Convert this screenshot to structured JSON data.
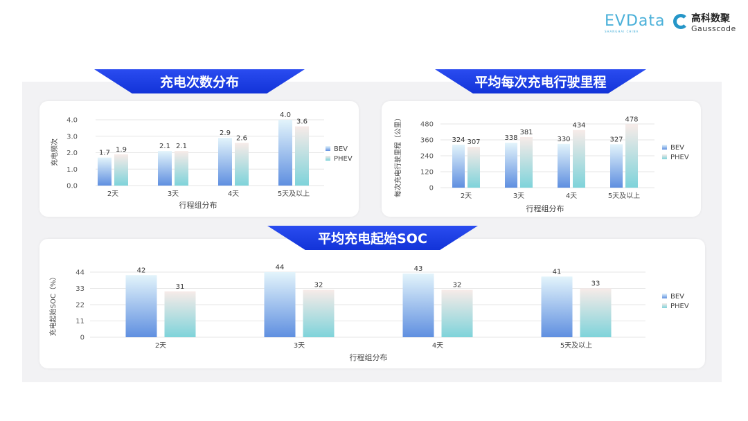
{
  "logos": {
    "evdata": "EVData",
    "evdata_sub": "SHANGHAI CHINA",
    "gauss_cn": "高科数聚",
    "gauss_en": "Gausscode"
  },
  "colors": {
    "bev_top": "#e3f4fb",
    "bev_bottom": "#5f8fe0",
    "phev_top": "#f7ebe8",
    "phev_bottom": "#7ed3da",
    "banner": "#1a3be4"
  },
  "chart_data": [
    {
      "type": "bar",
      "title": "充电次数分布",
      "xlabel": "行程组分布",
      "ylabel": "充电频次",
      "categories": [
        "2天",
        "3天",
        "4天",
        "5天及以上"
      ],
      "ylim": [
        0,
        4
      ],
      "yticks": [
        "0.0",
        "1.0",
        "2.0",
        "3.0",
        "4.0"
      ],
      "series": [
        {
          "name": "BEV",
          "values": [
            1.7,
            2.1,
            2.9,
            4.0
          ],
          "labels": [
            "1.7",
            "2.1",
            "2.9",
            "4.0"
          ]
        },
        {
          "name": "PHEV",
          "values": [
            1.9,
            2.1,
            2.6,
            3.6
          ],
          "labels": [
            "1.9",
            "2.1",
            "2.6",
            "3.6"
          ]
        }
      ],
      "grid": true,
      "legend": "right"
    },
    {
      "type": "bar",
      "title": "平均每次充电行驶里程",
      "xlabel": "行程组分布",
      "ylabel": "每次充电行驶里程（公里）",
      "categories": [
        "2天",
        "3天",
        "4天",
        "5天及以上"
      ],
      "ylim": [
        0,
        480
      ],
      "yticks": [
        "0",
        "120",
        "240",
        "360",
        "480"
      ],
      "series": [
        {
          "name": "BEV",
          "values": [
            324,
            338,
            330,
            327
          ],
          "labels": [
            "324",
            "338",
            "330",
            "327"
          ]
        },
        {
          "name": "PHEV",
          "values": [
            307,
            381,
            434,
            478
          ],
          "labels": [
            "307",
            "381",
            "434",
            "478"
          ]
        }
      ],
      "grid": true,
      "legend": "right"
    },
    {
      "type": "bar",
      "title": "平均充电起始SOC",
      "xlabel": "行程组分布",
      "ylabel": "充电起始SOC（%）",
      "categories": [
        "2天",
        "3天",
        "4天",
        "5天及以上"
      ],
      "ylim": [
        0,
        44
      ],
      "yticks": [
        "0",
        "11",
        "22",
        "33",
        "44"
      ],
      "series": [
        {
          "name": "BEV",
          "values": [
            42,
            44,
            43,
            41
          ],
          "labels": [
            "42",
            "44",
            "43",
            "41"
          ]
        },
        {
          "name": "PHEV",
          "values": [
            31,
            32,
            32,
            33
          ],
          "labels": [
            "31",
            "32",
            "32",
            "33"
          ]
        }
      ],
      "grid": true,
      "legend": "right"
    }
  ]
}
